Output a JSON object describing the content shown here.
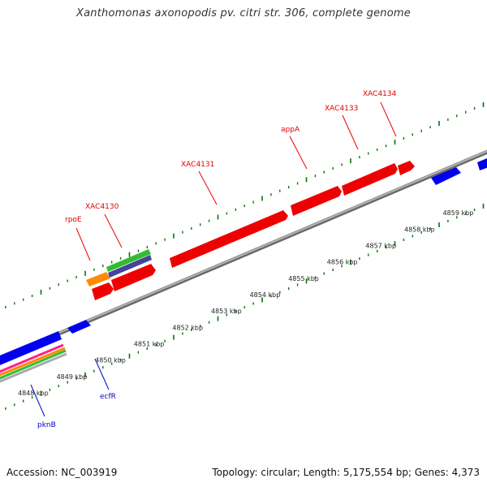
{
  "title": "Xanthomonas axonopodis pv. citri str. 306, complete genome",
  "footer": {
    "accession": "Accession: NC_003919",
    "topology": "Topology: circular; Length: 5,175,554 bp; Genes: 4,373"
  },
  "colors": {
    "forward_gene": "#ff0000",
    "reverse_gene": "#0000ff",
    "backbone": "#888888",
    "ticks": "#007700"
  },
  "kbp_labels": [
    "4848 kbp",
    "4849 kbp",
    "4850 kbp",
    "4851 kbp",
    "4852 kbp",
    "4853 kbp",
    "4854 kbp",
    "4855 kbp",
    "4856 kbp",
    "4857 kbp",
    "4858 kbp",
    "4859 kbp"
  ],
  "gene_labels_forward": [
    "rpoE",
    "XAC4130",
    "XAC4131",
    "appA",
    "XAC4133",
    "XAC4134"
  ],
  "gene_labels_reverse": [
    "pknB",
    "ecfR"
  ]
}
